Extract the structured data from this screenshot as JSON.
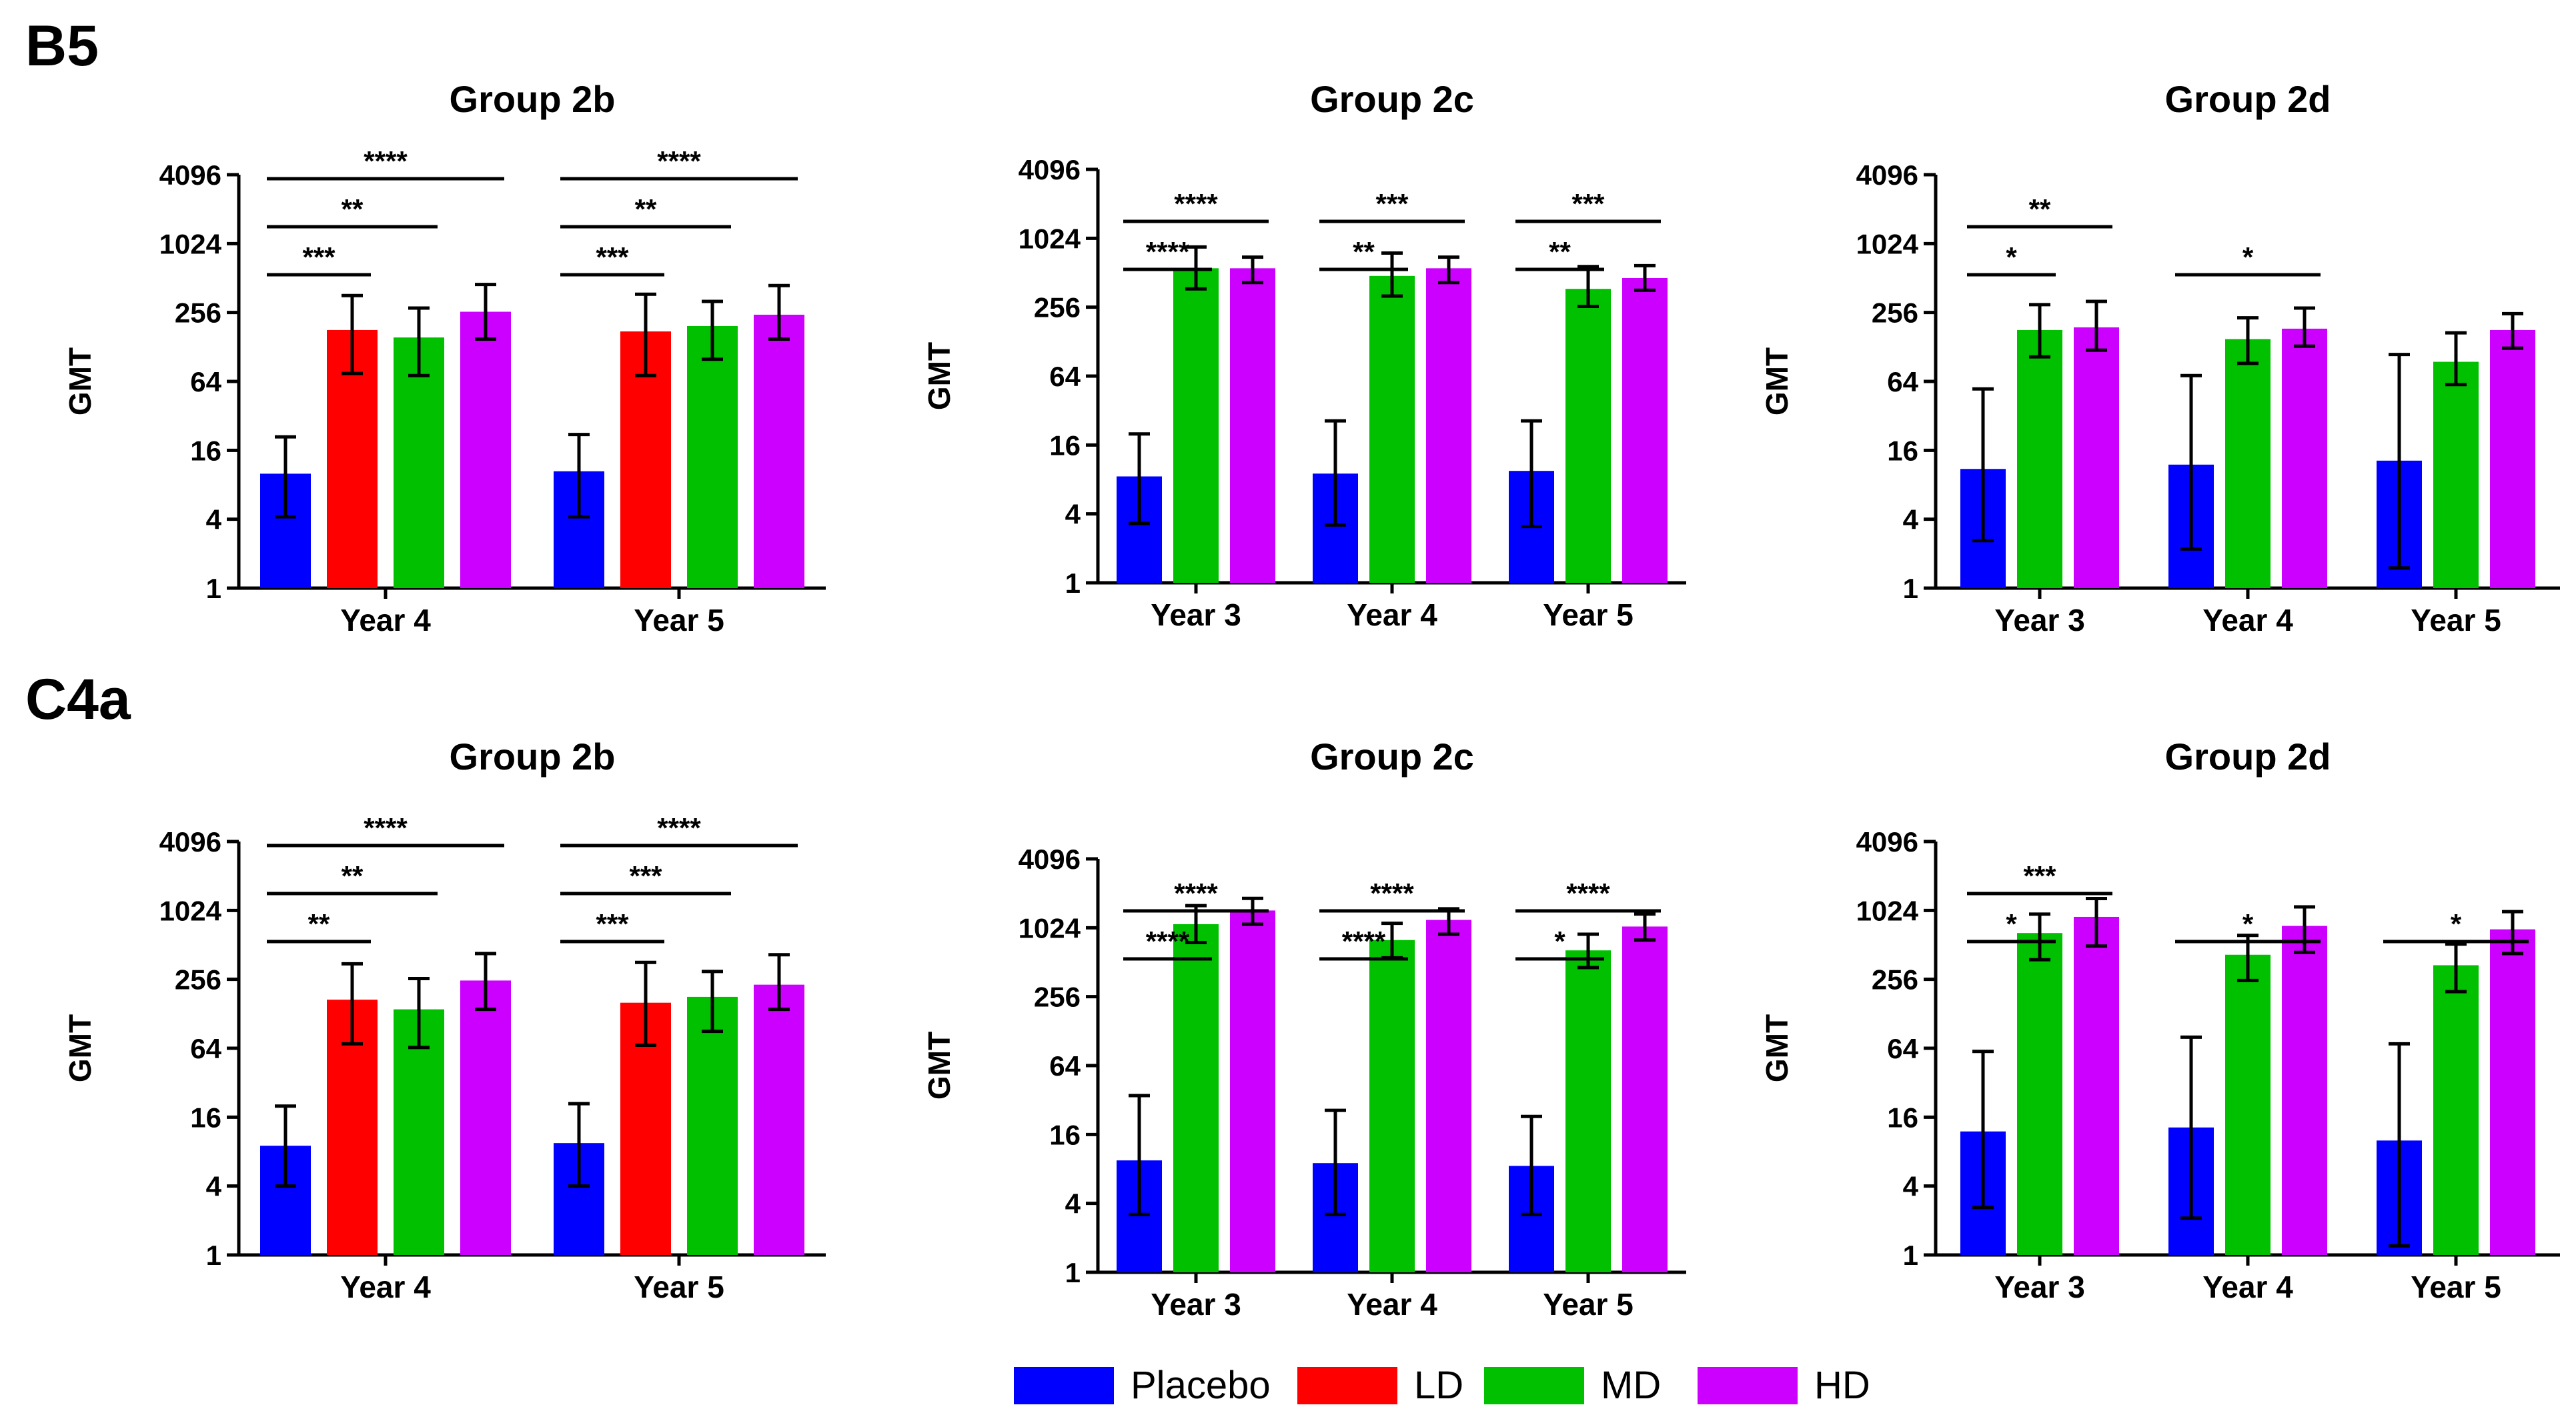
{
  "colors": {
    "Placebo": "#0000ff",
    "LD": "#ff0000",
    "MD": "#00c000",
    "HD": "#cc00ff"
  },
  "legend": [
    {
      "name": "Placebo",
      "color": "#0000ff"
    },
    {
      "name": "LD",
      "color": "#ff0000"
    },
    {
      "name": "MD",
      "color": "#00c000"
    },
    {
      "name": "HD",
      "color": "#cc00ff"
    }
  ],
  "row_labels": [
    "B5",
    "C4a"
  ],
  "chart_data": [
    {
      "type": "bar",
      "title": "Group 2b",
      "ylabel": "GMT",
      "yscale": "log2",
      "ylim": [
        1,
        4096
      ],
      "yticks": [
        "1",
        "4",
        "16",
        "64",
        "256",
        "1024",
        "4096"
      ],
      "categories": [
        "Year 4",
        "Year 5"
      ],
      "series": [
        {
          "name": "Placebo",
          "values": [
            10,
            10.5
          ],
          "err_low": [
            4.2,
            4.2
          ],
          "err_high": [
            21,
            22
          ]
        },
        {
          "name": "LD",
          "values": [
            180,
            175
          ],
          "err_low": [
            75,
            72
          ],
          "err_high": [
            360,
            370
          ]
        },
        {
          "name": "MD",
          "values": [
            155,
            195
          ],
          "err_low": [
            72,
            100
          ],
          "err_high": [
            280,
            320
          ]
        },
        {
          "name": "HD",
          "values": [
            260,
            245
          ],
          "err_low": [
            150,
            150
          ],
          "err_high": [
            450,
            440
          ]
        }
      ],
      "significance": [
        {
          "text": "***",
          "from": [
            0,
            0
          ],
          "to": [
            0,
            1
          ]
        },
        {
          "text": "**",
          "from": [
            0,
            0
          ],
          "to": [
            0,
            2
          ]
        },
        {
          "text": "****",
          "from": [
            0,
            0
          ],
          "to": [
            0,
            3
          ]
        },
        {
          "text": "***",
          "from": [
            1,
            0
          ],
          "to": [
            1,
            1
          ]
        },
        {
          "text": "**",
          "from": [
            1,
            0
          ],
          "to": [
            1,
            2
          ]
        },
        {
          "text": "****",
          "from": [
            1,
            0
          ],
          "to": [
            1,
            3
          ]
        }
      ]
    },
    {
      "type": "bar",
      "title": "Group 2c",
      "ylabel": "GMT",
      "yscale": "log2",
      "ylim": [
        1,
        4096
      ],
      "yticks": [
        "1",
        "4",
        "16",
        "64",
        "256",
        "1024",
        "4096"
      ],
      "categories": [
        "Year 3",
        "Year 4",
        "Year 5"
      ],
      "series": [
        {
          "name": "Placebo",
          "values": [
            8.5,
            9,
            9.5
          ],
          "err_low": [
            3.3,
            3.2,
            3.1
          ],
          "err_high": [
            20,
            26,
            26
          ]
        },
        {
          "name": "MD",
          "values": [
            560,
            480,
            370
          ],
          "err_low": [
            370,
            320,
            260
          ],
          "err_high": [
            860,
            760,
            580
          ]
        },
        {
          "name": "HD",
          "values": [
            560,
            560,
            460
          ],
          "err_low": [
            420,
            420,
            360
          ],
          "err_high": [
            700,
            700,
            590
          ]
        }
      ],
      "significance": [
        {
          "text": "****",
          "from": [
            0,
            0
          ],
          "to": [
            0,
            1
          ]
        },
        {
          "text": "****",
          "from": [
            0,
            0
          ],
          "to": [
            0,
            2
          ]
        },
        {
          "text": "**",
          "from": [
            1,
            0
          ],
          "to": [
            1,
            1
          ]
        },
        {
          "text": "***",
          "from": [
            1,
            0
          ],
          "to": [
            1,
            2
          ]
        },
        {
          "text": "**",
          "from": [
            2,
            0
          ],
          "to": [
            2,
            1
          ]
        },
        {
          "text": "***",
          "from": [
            2,
            0
          ],
          "to": [
            2,
            2
          ]
        }
      ]
    },
    {
      "type": "bar",
      "title": "Group 2d",
      "ylabel": "GMT",
      "yscale": "log2",
      "ylim": [
        1,
        4096
      ],
      "yticks": [
        "1",
        "4",
        "16",
        "64",
        "256",
        "1024",
        "4096"
      ],
      "categories": [
        "Year 3",
        "Year 4",
        "Year 5"
      ],
      "series": [
        {
          "name": "Placebo",
          "values": [
            11,
            12,
            13
          ],
          "err_low": [
            2.6,
            2.2,
            1.5
          ],
          "err_high": [
            55,
            72,
            110
          ]
        },
        {
          "name": "MD",
          "values": [
            180,
            150,
            95
          ],
          "err_low": [
            105,
            92,
            60
          ],
          "err_high": [
            300,
            230,
            170
          ]
        },
        {
          "name": "HD",
          "values": [
            190,
            185,
            180
          ],
          "err_low": [
            120,
            130,
            125
          ],
          "err_high": [
            320,
            280,
            250
          ]
        }
      ],
      "significance": [
        {
          "text": "*",
          "from": [
            0,
            0
          ],
          "to": [
            0,
            1
          ]
        },
        {
          "text": "**",
          "from": [
            0,
            0
          ],
          "to": [
            0,
            2
          ]
        },
        {
          "text": "*",
          "from": [
            1,
            0
          ],
          "to": [
            1,
            2
          ]
        }
      ]
    },
    {
      "type": "bar",
      "title": "Group 2b",
      "ylabel": "GMT",
      "yscale": "log2",
      "ylim": [
        1,
        4096
      ],
      "yticks": [
        "1",
        "4",
        "16",
        "64",
        "256",
        "1024",
        "4096"
      ],
      "categories": [
        "Year 4",
        "Year 5"
      ],
      "series": [
        {
          "name": "Placebo",
          "values": [
            9,
            9.5
          ],
          "err_low": [
            4,
            4
          ],
          "err_high": [
            20,
            21
          ]
        },
        {
          "name": "LD",
          "values": [
            170,
            160
          ],
          "err_low": [
            70,
            68
          ],
          "err_high": [
            350,
            360
          ]
        },
        {
          "name": "MD",
          "values": [
            140,
            180
          ],
          "err_low": [
            65,
            90
          ],
          "err_high": [
            260,
            300
          ]
        },
        {
          "name": "HD",
          "values": [
            250,
            230
          ],
          "err_low": [
            140,
            140
          ],
          "err_high": [
            430,
            420
          ]
        }
      ],
      "significance": [
        {
          "text": "**",
          "from": [
            0,
            0
          ],
          "to": [
            0,
            1
          ]
        },
        {
          "text": "**",
          "from": [
            0,
            0
          ],
          "to": [
            0,
            2
          ]
        },
        {
          "text": "****",
          "from": [
            0,
            0
          ],
          "to": [
            0,
            3
          ]
        },
        {
          "text": "***",
          "from": [
            1,
            0
          ],
          "to": [
            1,
            1
          ]
        },
        {
          "text": "***",
          "from": [
            1,
            0
          ],
          "to": [
            1,
            2
          ]
        },
        {
          "text": "****",
          "from": [
            1,
            0
          ],
          "to": [
            1,
            3
          ]
        }
      ]
    },
    {
      "type": "bar",
      "title": "Group 2c",
      "ylabel": "GMT",
      "yscale": "log2",
      "ylim": [
        1,
        4096
      ],
      "yticks": [
        "1",
        "4",
        "16",
        "64",
        "256",
        "1024",
        "4096"
      ],
      "categories": [
        "Year 3",
        "Year 4",
        "Year 5"
      ],
      "series": [
        {
          "name": "Placebo",
          "values": [
            9.5,
            9,
            8.5
          ],
          "err_low": [
            3.2,
            3.2,
            3.2
          ],
          "err_high": [
            35,
            26,
            23
          ]
        },
        {
          "name": "MD",
          "values": [
            1100,
            800,
            650
          ],
          "err_low": [
            760,
            560,
            460
          ],
          "err_high": [
            1600,
            1120,
            900
          ]
        },
        {
          "name": "HD",
          "values": [
            1450,
            1200,
            1050
          ],
          "err_low": [
            1100,
            900,
            800
          ],
          "err_high": [
            1850,
            1500,
            1350
          ]
        }
      ],
      "significance": [
        {
          "text": "****",
          "from": [
            0,
            0
          ],
          "to": [
            0,
            1
          ]
        },
        {
          "text": "****",
          "from": [
            0,
            0
          ],
          "to": [
            0,
            2
          ]
        },
        {
          "text": "****",
          "from": [
            1,
            0
          ],
          "to": [
            1,
            1
          ]
        },
        {
          "text": "****",
          "from": [
            1,
            0
          ],
          "to": [
            1,
            2
          ]
        },
        {
          "text": "*",
          "from": [
            2,
            0
          ],
          "to": [
            2,
            1
          ]
        },
        {
          "text": "****",
          "from": [
            2,
            0
          ],
          "to": [
            2,
            2
          ]
        }
      ]
    },
    {
      "type": "bar",
      "title": "Group 2d",
      "ylabel": "GMT",
      "yscale": "log2",
      "ylim": [
        1,
        4096
      ],
      "yticks": [
        "1",
        "4",
        "16",
        "64",
        "256",
        "1024",
        "4096"
      ],
      "categories": [
        "Year 3",
        "Year 4",
        "Year 5"
      ],
      "series": [
        {
          "name": "Placebo",
          "values": [
            12,
            13,
            10
          ],
          "err_low": [
            2.6,
            2.1,
            1.2
          ],
          "err_high": [
            60,
            80,
            70
          ]
        },
        {
          "name": "MD",
          "values": [
            650,
            420,
            340
          ],
          "err_low": [
            380,
            250,
            200
          ],
          "err_high": [
            950,
            620,
            520
          ]
        },
        {
          "name": "HD",
          "values": [
            900,
            750,
            700
          ],
          "err_low": [
            500,
            440,
            430
          ],
          "err_high": [
            1300,
            1100,
            1000
          ]
        }
      ],
      "significance": [
        {
          "text": "*",
          "from": [
            0,
            0
          ],
          "to": [
            0,
            1
          ]
        },
        {
          "text": "***",
          "from": [
            0,
            0
          ],
          "to": [
            0,
            2
          ]
        },
        {
          "text": "*",
          "from": [
            1,
            0
          ],
          "to": [
            1,
            2
          ]
        },
        {
          "text": "*",
          "from": [
            2,
            0
          ],
          "to": [
            2,
            2
          ]
        }
      ]
    }
  ]
}
